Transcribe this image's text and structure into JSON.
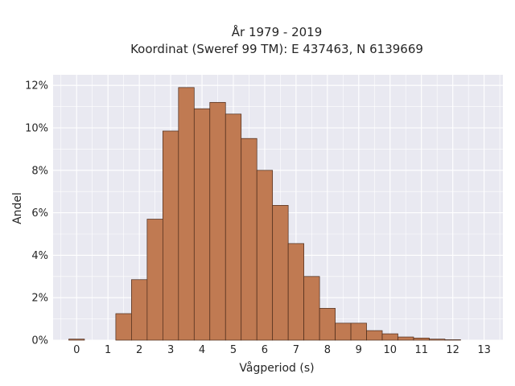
{
  "chart_data": {
    "type": "bar",
    "title": "År 1979 - 2019",
    "subtitle": "Koordinat (Sweref 99 TM): E 437463, N 6139669",
    "xlabel": "Vågperiod (s)",
    "ylabel": "Andel",
    "xlim": [
      -0.75,
      13.6
    ],
    "ylim": [
      0,
      12.5
    ],
    "x_ticks": [
      0,
      1,
      2,
      3,
      4,
      5,
      6,
      7,
      8,
      9,
      10,
      11,
      12,
      13
    ],
    "y_ticks": [
      0,
      2,
      4,
      6,
      8,
      10,
      12
    ],
    "y_tick_labels": [
      "0%",
      "2%",
      "4%",
      "6%",
      "8%",
      "10%",
      "12%"
    ],
    "bin_width": 0.5,
    "bin_starts": [
      -0.25,
      0.25,
      0.75,
      1.25,
      1.75,
      2.25,
      2.75,
      3.25,
      3.75,
      4.25,
      4.75,
      5.25,
      5.75,
      6.25,
      6.75,
      7.25,
      7.75,
      8.25,
      8.75,
      9.25,
      9.75,
      10.25,
      10.75,
      11.25,
      11.75
    ],
    "values": [
      0.05,
      0,
      0,
      1.25,
      2.85,
      5.7,
      9.85,
      11.9,
      10.9,
      11.2,
      10.65,
      9.5,
      8.0,
      6.35,
      4.55,
      3.0,
      1.5,
      0.8,
      0.8,
      0.45,
      0.3,
      0.15,
      0.1,
      0.05,
      0.02
    ],
    "grid": true,
    "colors": {
      "bar_fill": "#c07a52",
      "bar_edge": "#4a2a1a",
      "plot_bg": "#e9e9f1",
      "grid": "#ffffff"
    }
  }
}
